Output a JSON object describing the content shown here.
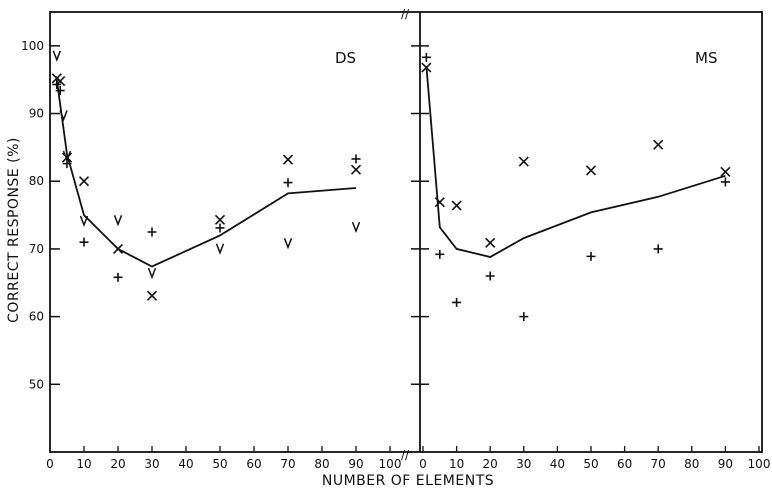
{
  "chart_data": {
    "type": "scatter",
    "xlabel": "NUMBER OF ELEMENTS",
    "ylabel": "CORRECT RESPONSE (%)",
    "ylim": [
      40,
      105
    ],
    "yticks": [
      50,
      60,
      70,
      80,
      90,
      100
    ],
    "xlim": [
      0,
      100
    ],
    "xticks": [
      0,
      10,
      20,
      30,
      40,
      50,
      60,
      70,
      80,
      90,
      100
    ],
    "grid": false,
    "axis_break": "//",
    "panels": [
      {
        "label": "DS",
        "series": [
          {
            "marker": "x",
            "points": [
              [
                2,
                95.2
              ],
              [
                3,
                94.8
              ],
              [
                5,
                83.5
              ],
              [
                10,
                80
              ],
              [
                20,
                70
              ],
              [
                30,
                63.1
              ],
              [
                50,
                74.3
              ],
              [
                70,
                83.2
              ],
              [
                90,
                81.7
              ]
            ]
          },
          {
            "marker": "+",
            "points": [
              [
                2,
                94.3
              ],
              [
                3,
                93.4
              ],
              [
                5,
                82.6
              ],
              [
                10,
                71
              ],
              [
                20,
                65.8
              ],
              [
                30,
                72.5
              ],
              [
                50,
                73.1
              ],
              [
                70,
                79.8
              ],
              [
                90,
                83.3
              ]
            ]
          },
          {
            "marker": "v",
            "points": [
              [
                2,
                98.6
              ],
              [
                4,
                89.8
              ],
              [
                5,
                83.8
              ],
              [
                10,
                74.2
              ],
              [
                20,
                74.3
              ],
              [
                30,
                66.5
              ],
              [
                50,
                70.1
              ],
              [
                70,
                70.9
              ],
              [
                90,
                73.3
              ]
            ]
          },
          {
            "marker": "line",
            "points": [
              [
                2,
                95
              ],
              [
                5,
                84
              ],
              [
                10,
                75
              ],
              [
                20,
                70
              ],
              [
                30,
                67.4
              ],
              [
                50,
                72
              ],
              [
                70,
                78.2
              ],
              [
                90,
                79
              ]
            ]
          }
        ]
      },
      {
        "label": "MS",
        "series": [
          {
            "marker": "x",
            "points": [
              [
                1,
                96.8
              ],
              [
                5,
                76.9
              ],
              [
                10,
                76.4
              ],
              [
                20,
                70.9
              ],
              [
                30,
                82.9
              ],
              [
                50,
                81.6
              ],
              [
                70,
                85.4
              ],
              [
                90,
                81.4
              ]
            ]
          },
          {
            "marker": "+",
            "points": [
              [
                1,
                98.3
              ],
              [
                5,
                69.2
              ],
              [
                10,
                62.1
              ],
              [
                20,
                66
              ],
              [
                30,
                60
              ],
              [
                50,
                68.9
              ],
              [
                70,
                70
              ],
              [
                90,
                79.9
              ]
            ]
          },
          {
            "marker": "line",
            "points": [
              [
                1,
                97
              ],
              [
                5,
                73.2
              ],
              [
                10,
                70
              ],
              [
                20,
                68.8
              ],
              [
                30,
                71.6
              ],
              [
                50,
                75.4
              ],
              [
                70,
                77.7
              ],
              [
                90,
                80.8
              ]
            ]
          }
        ]
      }
    ]
  }
}
